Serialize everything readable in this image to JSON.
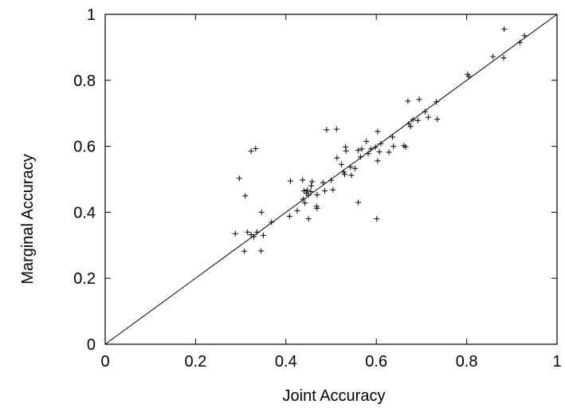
{
  "chart_data": {
    "type": "scatter",
    "title": "",
    "xlabel": "Joint Accuracy",
    "ylabel": "Marginal Accuracy",
    "xlim": [
      0,
      1
    ],
    "ylim": [
      0,
      1
    ],
    "xticks": [
      "0",
      "0.2",
      "0.4",
      "0.6",
      "0.8",
      "1"
    ],
    "yticks": [
      "0",
      "0.2",
      "0.4",
      "0.6",
      "0.8",
      "1"
    ],
    "grid": false,
    "marker": "+",
    "reference_line": {
      "x": [
        0,
        1
      ],
      "y": [
        0,
        1
      ]
    },
    "points": [
      [
        0.883,
        0.955
      ],
      [
        0.928,
        0.935
      ],
      [
        0.918,
        0.915
      ],
      [
        0.858,
        0.872
      ],
      [
        0.882,
        0.868
      ],
      [
        0.802,
        0.818
      ],
      [
        0.805,
        0.812
      ],
      [
        0.695,
        0.742
      ],
      [
        0.67,
        0.737
      ],
      [
        0.733,
        0.735
      ],
      [
        0.708,
        0.705
      ],
      [
        0.715,
        0.688
      ],
      [
        0.735,
        0.682
      ],
      [
        0.692,
        0.678
      ],
      [
        0.681,
        0.681
      ],
      [
        0.672,
        0.668
      ],
      [
        0.676,
        0.66
      ],
      [
        0.512,
        0.652
      ],
      [
        0.49,
        0.65
      ],
      [
        0.603,
        0.645
      ],
      [
        0.636,
        0.628
      ],
      [
        0.578,
        0.615
      ],
      [
        0.61,
        0.608
      ],
      [
        0.661,
        0.602
      ],
      [
        0.665,
        0.598
      ],
      [
        0.638,
        0.6
      ],
      [
        0.532,
        0.598
      ],
      [
        0.598,
        0.597
      ],
      [
        0.588,
        0.592
      ],
      [
        0.568,
        0.592
      ],
      [
        0.56,
        0.588
      ],
      [
        0.533,
        0.586
      ],
      [
        0.628,
        0.582
      ],
      [
        0.607,
        0.583
      ],
      [
        0.582,
        0.578
      ],
      [
        0.565,
        0.568
      ],
      [
        0.513,
        0.565
      ],
      [
        0.603,
        0.556
      ],
      [
        0.523,
        0.545
      ],
      [
        0.543,
        0.537
      ],
      [
        0.553,
        0.533
      ],
      [
        0.528,
        0.522
      ],
      [
        0.53,
        0.515
      ],
      [
        0.545,
        0.512
      ],
      [
        0.5,
        0.497
      ],
      [
        0.41,
        0.495
      ],
      [
        0.437,
        0.498
      ],
      [
        0.458,
        0.493
      ],
      [
        0.456,
        0.48
      ],
      [
        0.482,
        0.49
      ],
      [
        0.486,
        0.465
      ],
      [
        0.504,
        0.468
      ],
      [
        0.447,
        0.467
      ],
      [
        0.455,
        0.463
      ],
      [
        0.44,
        0.465
      ],
      [
        0.445,
        0.458
      ],
      [
        0.45,
        0.452
      ],
      [
        0.469,
        0.453
      ],
      [
        0.438,
        0.44
      ],
      [
        0.442,
        0.428
      ],
      [
        0.468,
        0.418
      ],
      [
        0.469,
        0.412
      ],
      [
        0.425,
        0.405
      ],
      [
        0.408,
        0.388
      ],
      [
        0.45,
        0.38
      ],
      [
        0.368,
        0.37
      ],
      [
        0.35,
        0.33
      ],
      [
        0.336,
        0.34
      ],
      [
        0.329,
        0.326
      ],
      [
        0.323,
        0.332
      ],
      [
        0.315,
        0.34
      ],
      [
        0.288,
        0.335
      ],
      [
        0.308,
        0.282
      ],
      [
        0.345,
        0.283
      ],
      [
        0.297,
        0.503
      ],
      [
        0.31,
        0.45
      ],
      [
        0.346,
        0.4
      ],
      [
        0.323,
        0.585
      ],
      [
        0.333,
        0.593
      ],
      [
        0.56,
        0.43
      ],
      [
        0.601,
        0.38
      ]
    ]
  }
}
